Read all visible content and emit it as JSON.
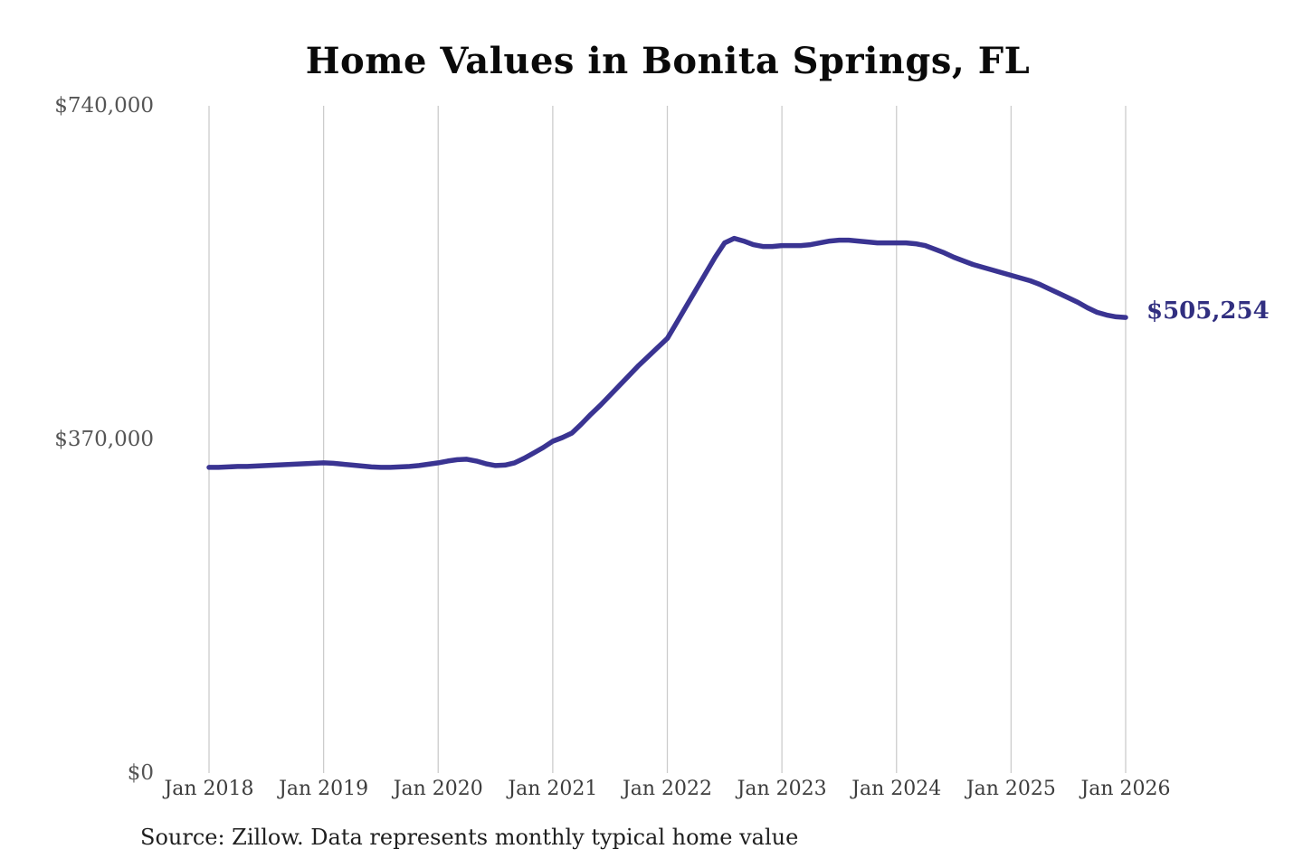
{
  "title": "Home Values in Bonita Springs, FL",
  "source_note": "Source: Zillow. Data represents monthly typical home value",
  "colors": {
    "line": "#3a3492",
    "end_label": "#312f80",
    "grid": "#cccccc",
    "y_tick_text": "#555555",
    "x_tick_text": "#3d3d3d",
    "title_text": "#0a0a0a",
    "source_text": "#1f1f1f",
    "background": "#ffffff"
  },
  "chart_data": {
    "type": "line",
    "title": "Home Values in Bonita Springs, FL",
    "xlabel": "",
    "ylabel": "",
    "ylim": [
      0,
      740000
    ],
    "grid": "vertical-gridlines-only",
    "legend_position": "none",
    "y_ticks": [
      {
        "label": "$740,000",
        "value": 740000
      },
      {
        "label": "$370,000",
        "value": 370000
      },
      {
        "label": "$0",
        "value": 0
      }
    ],
    "x_ticks": [
      {
        "label": "Jan 2018",
        "month_index": 0
      },
      {
        "label": "Jan 2019",
        "month_index": 12
      },
      {
        "label": "Jan 2020",
        "month_index": 24
      },
      {
        "label": "Jan 2021",
        "month_index": 36
      },
      {
        "label": "Jan 2022",
        "month_index": 48
      },
      {
        "label": "Jan 2023",
        "month_index": 60
      },
      {
        "label": "Jan 2024",
        "month_index": 72
      },
      {
        "label": "Jan 2025",
        "month_index": 84
      },
      {
        "label": "Jan 2026",
        "month_index": 96
      }
    ],
    "x_unit": "months since Jan 2018, monthly cadence",
    "series": [
      {
        "name": "Typical home value",
        "color": "#3a3492",
        "values": [
          339000,
          339000,
          339500,
          340000,
          340000,
          340500,
          341000,
          341500,
          342000,
          342500,
          343000,
          343500,
          344000,
          343500,
          342500,
          341500,
          340500,
          339500,
          339000,
          339000,
          339500,
          340000,
          341000,
          342500,
          344000,
          346000,
          347500,
          348000,
          346000,
          343000,
          341000,
          341500,
          344000,
          349000,
          355000,
          361000,
          368000,
          372000,
          377000,
          387000,
          398000,
          408000,
          419000,
          430000,
          441000,
          452000,
          462000,
          472000,
          482000,
          500000,
          518000,
          536000,
          554000,
          572000,
          588000,
          593000,
          590000,
          586000,
          584000,
          584000,
          585000,
          585000,
          585000,
          586000,
          588000,
          590000,
          591000,
          591000,
          590000,
          589000,
          588000,
          588000,
          588000,
          588000,
          587000,
          585000,
          581000,
          577000,
          572000,
          568000,
          564000,
          561000,
          558000,
          555000,
          552000,
          549000,
          546000,
          542000,
          537000,
          532000,
          527000,
          522000,
          516000,
          511000,
          508000,
          506000,
          505254
        ]
      }
    ],
    "end_label": "$505,254",
    "last_value": 505254
  }
}
